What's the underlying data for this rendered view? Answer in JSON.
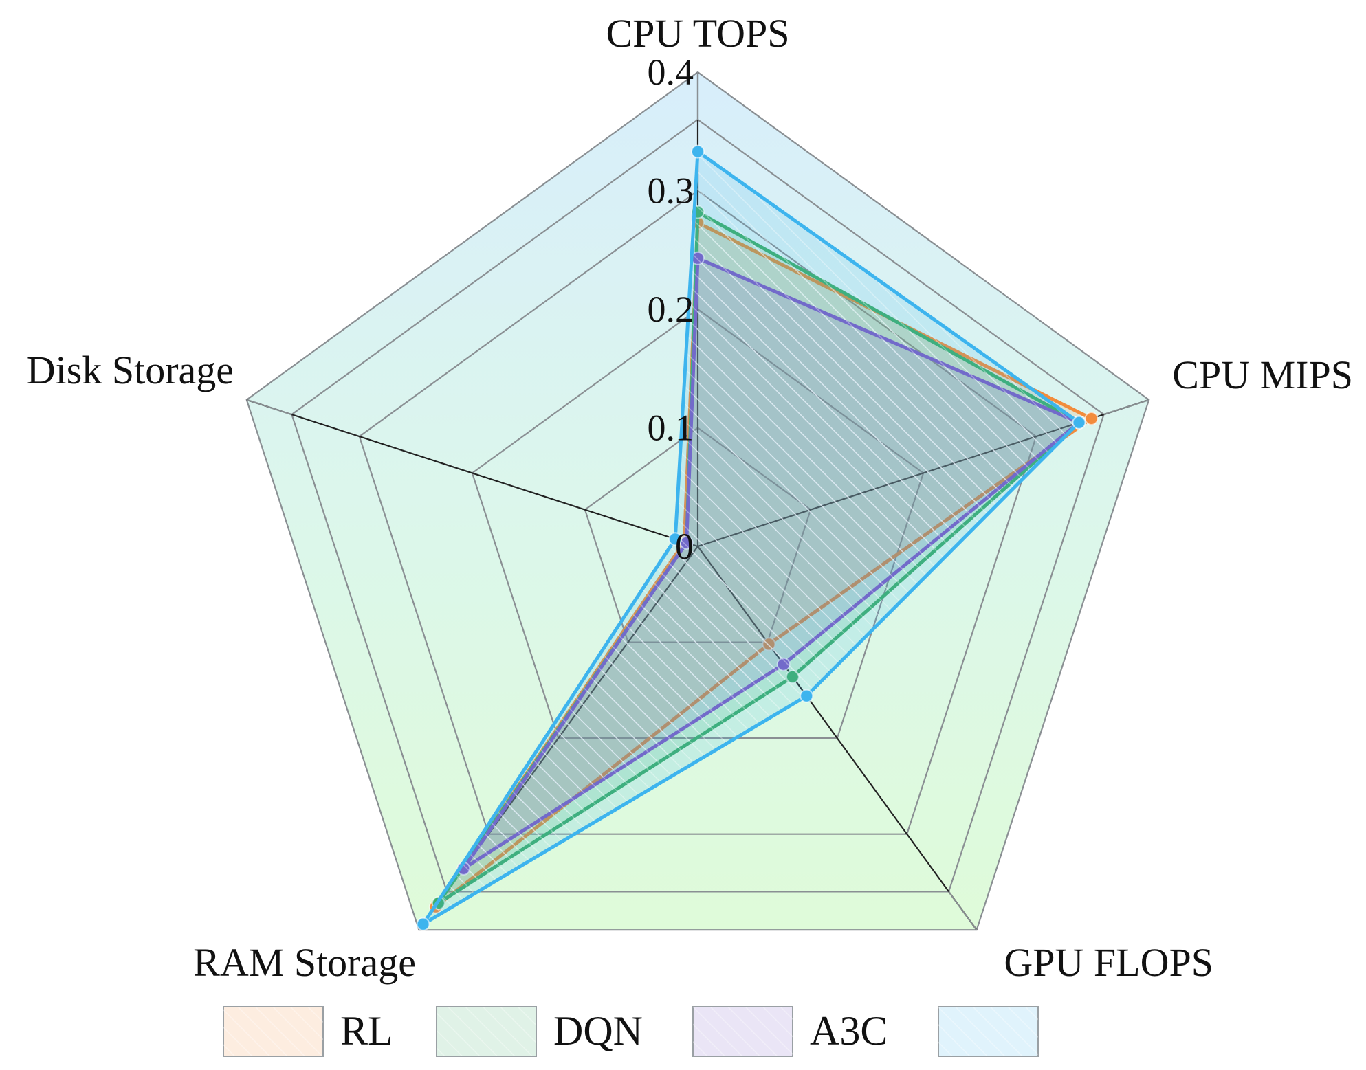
{
  "chart_data": {
    "type": "radar",
    "axes": [
      "CPU TOPS",
      "CPU MIPS",
      "GPU FLOPS",
      "RAM Storage",
      "Disk Storage"
    ],
    "range": [
      0,
      0.4
    ],
    "ticks": [
      "0",
      "0.1",
      "0.2",
      "0.3",
      "0.4"
    ],
    "tick_values": [
      0,
      0.1,
      0.2,
      0.3,
      0.4
    ],
    "grid": true,
    "legend_position": "bottom",
    "series": [
      {
        "name": "RL",
        "color": "#f28c3c",
        "values": [
          0.273,
          0.349,
          0.102,
          0.376,
          0.012
        ]
      },
      {
        "name": "DQN",
        "color": "#3fae6a",
        "values": [
          0.282,
          0.338,
          0.136,
          0.372,
          0.01
        ]
      },
      {
        "name": "A3C",
        "color": "#7c5cc4",
        "values": [
          0.243,
          0.338,
          0.123,
          0.336,
          0.01
        ]
      },
      {
        "name": "",
        "color": "#3db4ee",
        "values": [
          0.333,
          0.338,
          0.156,
          0.394,
          0.02
        ]
      }
    ]
  }
}
